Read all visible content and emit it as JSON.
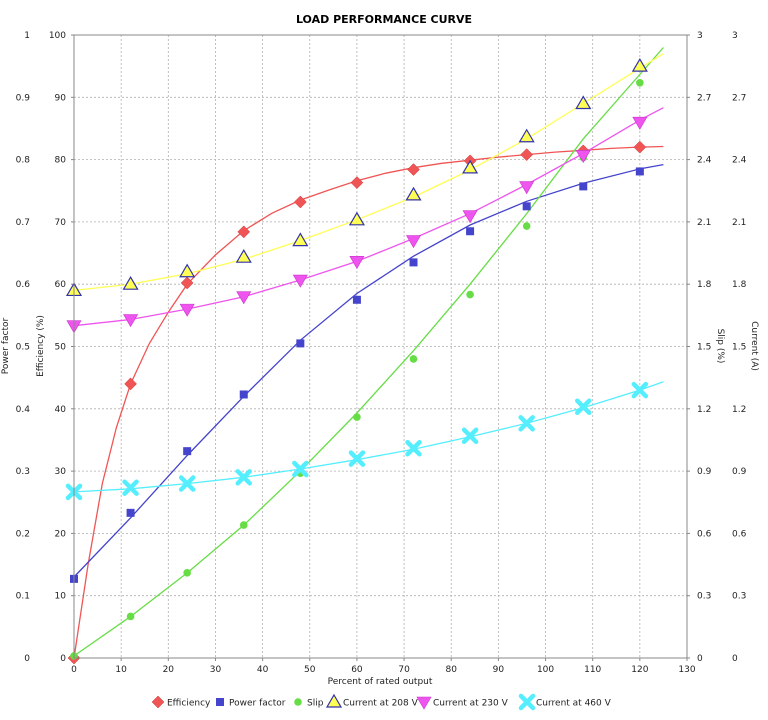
{
  "chart_data": {
    "type": "line",
    "title": "LOAD PERFORMANCE CURVE",
    "xlabel": "Percent of rated output",
    "xlim": [
      0,
      130
    ],
    "xticks": [
      0,
      10,
      20,
      30,
      40,
      50,
      60,
      70,
      80,
      90,
      100,
      110,
      120,
      130
    ],
    "grid": true,
    "legend_placement": "bottom",
    "axes": {
      "power_factor": {
        "label": "Power factor",
        "side": "left-outer",
        "ylim": [
          0,
          1
        ],
        "ticks": [
          "0",
          "0.1",
          "0.2",
          "0.3",
          "0.4",
          "0.5",
          "0.6",
          "0.7",
          "0.8",
          "0.9",
          "1"
        ]
      },
      "efficiency": {
        "label": "Efficiency (%)",
        "side": "left-inner",
        "ylim": [
          0,
          100
        ],
        "ticks": [
          "0",
          "10",
          "20",
          "30",
          "40",
          "50",
          "60",
          "70",
          "80",
          "90",
          "100"
        ]
      },
      "slip": {
        "label": "Slip (%)",
        "side": "right-inner",
        "ylim": [
          0,
          3
        ],
        "ticks": [
          "0",
          "0.3",
          "0.6",
          "0.9",
          "1.2",
          "1.5",
          "1.8",
          "2.1",
          "2.4",
          "2.7",
          "3"
        ]
      },
      "current": {
        "label": "Current (A)",
        "side": "right-outer",
        "ylim": [
          0,
          3
        ],
        "ticks": [
          "0",
          "0.3",
          "0.6",
          "0.9",
          "1.2",
          "1.5",
          "1.8",
          "2.1",
          "2.4",
          "2.7",
          "3"
        ]
      }
    },
    "series": [
      {
        "name": "Efficiency",
        "axis": "efficiency",
        "color": "#f05555",
        "marker": "diamond",
        "points": {
          "x": [
            0,
            12,
            24,
            36,
            48,
            60,
            72,
            84,
            96,
            108,
            120
          ],
          "y": [
            0,
            44,
            60.2,
            68.4,
            73.2,
            76.3,
            78.4,
            79.8,
            80.8,
            81.4,
            82
          ]
        },
        "curve": {
          "x": [
            0,
            3,
            6,
            9,
            12,
            16,
            20,
            24,
            30,
            36,
            42,
            48,
            54,
            60,
            66,
            72,
            78,
            84,
            90,
            96,
            102,
            108,
            114,
            120,
            125
          ],
          "y": [
            0,
            15,
            28,
            37,
            44,
            50.5,
            55.5,
            60,
            64.7,
            68.6,
            71.4,
            73.5,
            75.1,
            76.6,
            77.8,
            78.7,
            79.4,
            79.9,
            80.4,
            80.8,
            81.2,
            81.5,
            81.8,
            82,
            82.1
          ]
        }
      },
      {
        "name": "Power factor",
        "axis": "power_factor",
        "color": "#4444cc",
        "marker": "square",
        "points": {
          "x": [
            0,
            12,
            24,
            36,
            48,
            60,
            72,
            84,
            96,
            108,
            120
          ],
          "y": [
            0.127,
            0.233,
            0.332,
            0.423,
            0.505,
            0.575,
            0.635,
            0.685,
            0.725,
            0.757,
            0.781
          ]
        },
        "curve": {
          "x": [
            0,
            12,
            24,
            36,
            48,
            60,
            72,
            84,
            96,
            108,
            120,
            125
          ],
          "y": [
            0.13,
            0.225,
            0.325,
            0.42,
            0.51,
            0.585,
            0.645,
            0.695,
            0.733,
            0.762,
            0.785,
            0.792
          ]
        }
      },
      {
        "name": "Slip",
        "axis": "slip",
        "color": "#66dd44",
        "marker": "circle",
        "points": {
          "x": [
            0,
            12,
            24,
            36,
            48,
            60,
            72,
            84,
            96,
            108,
            120
          ],
          "y": [
            0.01,
            0.2,
            0.41,
            0.64,
            0.89,
            1.16,
            1.44,
            1.75,
            2.08,
            2.41,
            2.77
          ]
        },
        "curve": {
          "x": [
            0,
            12,
            24,
            36,
            48,
            60,
            72,
            84,
            96,
            108,
            120,
            125
          ],
          "y": [
            0.01,
            0.2,
            0.41,
            0.64,
            0.9,
            1.18,
            1.48,
            1.8,
            2.14,
            2.5,
            2.81,
            2.94
          ]
        }
      },
      {
        "name": "Current at 208 V",
        "axis": "current",
        "color": "#ffff55",
        "marker": "triangle-up",
        "points": {
          "x": [
            0,
            12,
            24,
            36,
            48,
            60,
            72,
            84,
            96,
            108,
            120
          ],
          "y": [
            1.77,
            1.8,
            1.86,
            1.93,
            2.01,
            2.11,
            2.23,
            2.36,
            2.51,
            2.67,
            2.85
          ]
        },
        "curve": {
          "x": [
            0,
            12,
            24,
            36,
            48,
            60,
            72,
            84,
            96,
            108,
            120,
            125
          ],
          "y": [
            1.77,
            1.8,
            1.85,
            1.92,
            2.01,
            2.11,
            2.22,
            2.35,
            2.5,
            2.67,
            2.84,
            2.91
          ]
        }
      },
      {
        "name": "Current at 230 V",
        "axis": "current",
        "color": "#ee55ee",
        "marker": "triangle-down",
        "points": {
          "x": [
            0,
            12,
            24,
            36,
            48,
            60,
            72,
            84,
            96,
            108,
            120
          ],
          "y": [
            1.6,
            1.63,
            1.68,
            1.74,
            1.82,
            1.91,
            2.01,
            2.13,
            2.27,
            2.42,
            2.58
          ]
        },
        "curve": {
          "x": [
            0,
            12,
            24,
            36,
            48,
            60,
            72,
            84,
            96,
            108,
            120,
            125
          ],
          "y": [
            1.6,
            1.63,
            1.68,
            1.74,
            1.82,
            1.91,
            2.02,
            2.14,
            2.28,
            2.43,
            2.59,
            2.65
          ]
        }
      },
      {
        "name": "Current at 460 V",
        "axis": "current",
        "color": "#55eeff",
        "marker": "x",
        "points": {
          "x": [
            0,
            12,
            24,
            36,
            48,
            60,
            72,
            84,
            96,
            108,
            120
          ],
          "y": [
            0.8,
            0.82,
            0.84,
            0.87,
            0.91,
            0.96,
            1.01,
            1.07,
            1.13,
            1.21,
            1.29
          ]
        },
        "curve": {
          "x": [
            0,
            12,
            24,
            36,
            48,
            60,
            72,
            84,
            96,
            108,
            120,
            125
          ],
          "y": [
            0.8,
            0.815,
            0.84,
            0.87,
            0.91,
            0.955,
            1.005,
            1.065,
            1.13,
            1.205,
            1.29,
            1.33
          ]
        }
      }
    ]
  }
}
